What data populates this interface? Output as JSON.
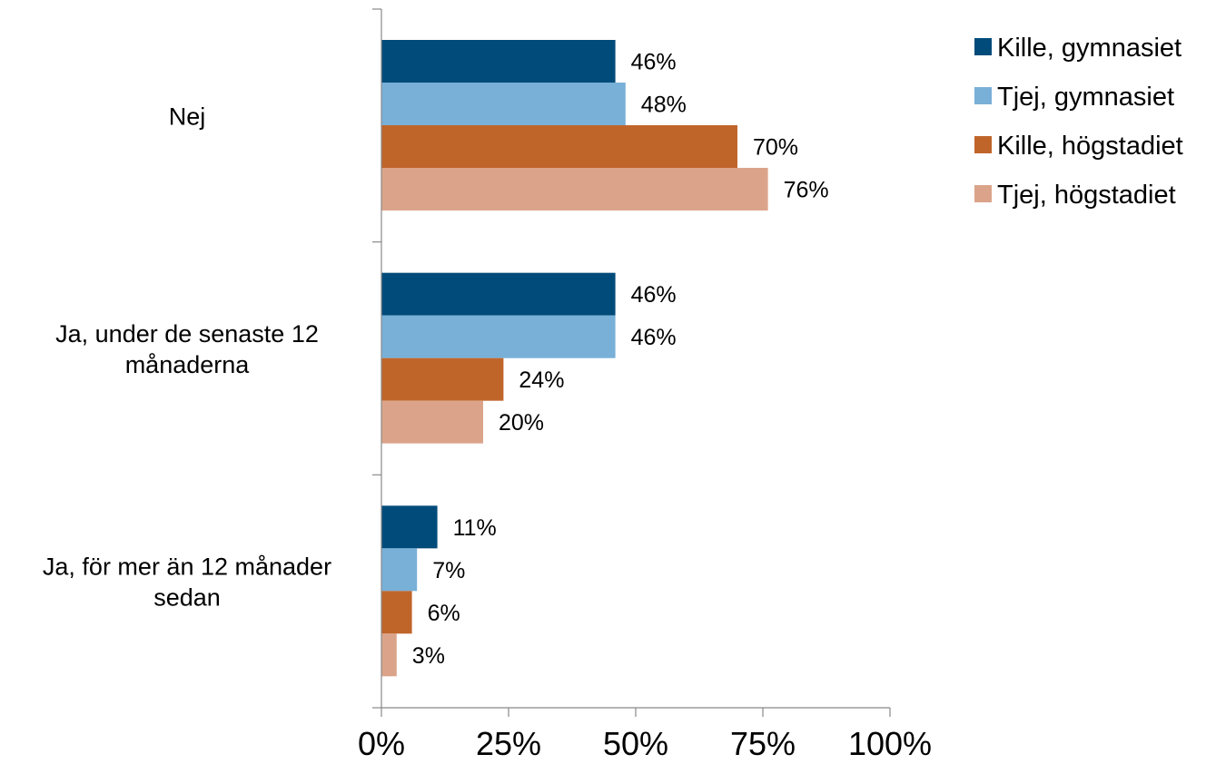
{
  "chart_data": {
    "type": "bar",
    "orientation": "horizontal",
    "categories": [
      [
        "Nej"
      ],
      [
        "Ja, under de senaste 12",
        "månaderna"
      ],
      [
        "Ja, för mer än 12 månader",
        "sedan"
      ]
    ],
    "series": [
      {
        "name": "Kille, gymnasiet",
        "color": "#004b7a",
        "values": [
          46,
          46,
          11
        ],
        "labels": [
          "46%",
          "46%",
          "11%"
        ]
      },
      {
        "name": "Tjej, gymnasiet",
        "color": "#78b0d8",
        "values": [
          48,
          46,
          7
        ],
        "labels": [
          "48%",
          "46%",
          "7%"
        ]
      },
      {
        "name": "Kille, högstadiet",
        "color": "#c0652a",
        "values": [
          70,
          24,
          6
        ],
        "labels": [
          "70%",
          "24%",
          "6%"
        ]
      },
      {
        "name": "Tjej, högstadiet",
        "color": "#dba48a",
        "values": [
          76,
          20,
          3
        ],
        "labels": [
          "76%",
          "20%",
          "3%"
        ]
      }
    ],
    "xlim": [
      0,
      100
    ],
    "xticks": [
      0,
      25,
      50,
      75,
      100
    ],
    "xtick_labels": [
      "0%",
      "25%",
      "50%",
      "75%",
      "100%"
    ],
    "grid": false,
    "legend_position": "top-right"
  }
}
